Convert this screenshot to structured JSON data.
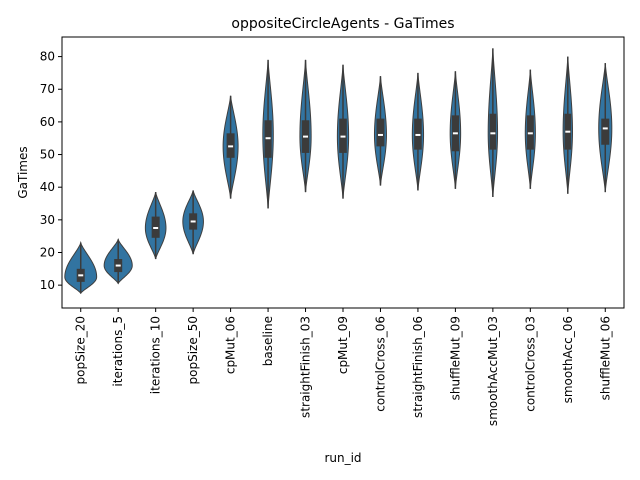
{
  "chart_data": {
    "type": "violin",
    "title": "oppositeCircleAgents - GaTimes",
    "xlabel": "run_id",
    "ylabel": "GaTimes",
    "ylim": [
      3,
      86
    ],
    "yticks": [
      10,
      20,
      30,
      40,
      50,
      60,
      70,
      80
    ],
    "grid": false,
    "legend": "none",
    "color": "#3274a1",
    "inner_color": "#3b3b3b",
    "categories": [
      "popSize_20",
      "iterations_5",
      "iterations_10",
      "popSize_50",
      "cpMut_06",
      "baseline",
      "straightFinish_03",
      "cpMut_09",
      "controlCross_06",
      "straightFinish_06",
      "shuffleMut_09",
      "smoothAccMut_03",
      "controlCross_03",
      "smoothAcc_06",
      "shuffleMut_06"
    ],
    "series": [
      {
        "min": 7.5,
        "q1": 11.0,
        "median": 13.0,
        "q3": 15.0,
        "max": 23.0,
        "mode": 12.5,
        "width": 0.85
      },
      {
        "min": 10.5,
        "q1": 14.0,
        "median": 16.0,
        "q3": 18.0,
        "max": 24.0,
        "mode": 16.0,
        "width": 0.75
      },
      {
        "min": 18.0,
        "q1": 24.5,
        "median": 27.5,
        "q3": 31.0,
        "max": 38.5,
        "mode": 27.5,
        "width": 0.55
      },
      {
        "min": 19.5,
        "q1": 27.0,
        "median": 29.5,
        "q3": 32.0,
        "max": 39.0,
        "mode": 29.5,
        "width": 0.55
      },
      {
        "min": 36.5,
        "q1": 49.0,
        "median": 52.5,
        "q3": 56.5,
        "max": 68.0,
        "mode": 52.5,
        "width": 0.4
      },
      {
        "min": 33.5,
        "q1": 49.0,
        "median": 55.0,
        "q3": 60.5,
        "max": 79.0,
        "mode": 56.0,
        "width": 0.28
      },
      {
        "min": 38.5,
        "q1": 50.5,
        "median": 55.5,
        "q3": 60.5,
        "max": 79.0,
        "mode": 55.5,
        "width": 0.3
      },
      {
        "min": 36.5,
        "q1": 50.5,
        "median": 55.5,
        "q3": 61.0,
        "max": 77.5,
        "mode": 55.5,
        "width": 0.3
      },
      {
        "min": 40.5,
        "q1": 52.5,
        "median": 56.0,
        "q3": 61.0,
        "max": 74.0,
        "mode": 56.0,
        "width": 0.32
      },
      {
        "min": 39.0,
        "q1": 51.5,
        "median": 56.0,
        "q3": 61.0,
        "max": 75.0,
        "mode": 56.0,
        "width": 0.3
      },
      {
        "min": 39.5,
        "q1": 51.0,
        "median": 56.5,
        "q3": 62.0,
        "max": 75.5,
        "mode": 56.5,
        "width": 0.28
      },
      {
        "min": 37.0,
        "q1": 51.5,
        "median": 56.5,
        "q3": 62.5,
        "max": 82.5,
        "mode": 56.5,
        "width": 0.25
      },
      {
        "min": 39.5,
        "q1": 51.5,
        "median": 56.5,
        "q3": 62.0,
        "max": 76.0,
        "mode": 56.5,
        "width": 0.27
      },
      {
        "min": 38.0,
        "q1": 51.5,
        "median": 57.0,
        "q3": 62.5,
        "max": 80.0,
        "mode": 57.0,
        "width": 0.25
      },
      {
        "min": 38.5,
        "q1": 53.0,
        "median": 58.0,
        "q3": 61.0,
        "max": 78.0,
        "mode": 58.0,
        "width": 0.35
      }
    ]
  }
}
